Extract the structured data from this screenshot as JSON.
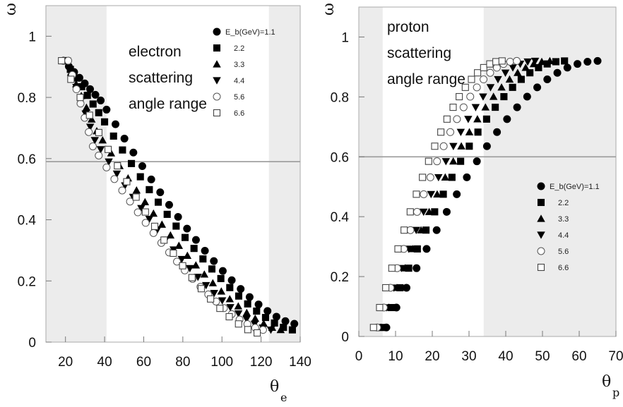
{
  "charts": [
    {
      "type": "scatter",
      "ylabel": "ω",
      "xlabel_main": "θ",
      "xlabel_sub": "e",
      "xlim": [
        10,
        140
      ],
      "ylim": [
        0,
        1.1
      ],
      "xticks": [
        "20",
        "40",
        "60",
        "80",
        "100",
        "120",
        "140"
      ],
      "yticks": [
        "0",
        "0.2",
        "0.4",
        "0.6",
        "0.8",
        "1"
      ],
      "annotation": [
        "electron",
        "scattering",
        "angle range"
      ],
      "legend_title": "E_b(GeV)=1.1",
      "legend_labels": [
        "2.2",
        "3.3",
        "4.4",
        "5.6",
        "6.6"
      ],
      "hline": 0.59,
      "shaded_x": [
        [
          10,
          41
        ],
        [
          124,
          140
        ]
      ],
      "series": [
        {
          "marker": "circle-filled",
          "x_start": 41,
          "x_end": 137,
          "y_start": 0.76,
          "y_end": 0.06,
          "upper_x_start": 19,
          "upper_y_start": 0.92
        },
        {
          "marker": "square-filled",
          "x_start": 40,
          "x_end": 136,
          "y_start": 0.72,
          "y_end": 0.04
        },
        {
          "marker": "triangle-up",
          "x_start": 39,
          "x_end": 130,
          "y_start": 0.66,
          "y_end": 0.04
        },
        {
          "marker": "triangle-down",
          "x_start": 38,
          "x_end": 125,
          "y_start": 0.63,
          "y_end": 0.04
        },
        {
          "marker": "circle-open",
          "x_start": 37,
          "x_end": 121,
          "y_start": 0.61,
          "y_end": 0.04
        },
        {
          "marker": "square-open",
          "x_start": 18,
          "x_end": 118,
          "y_start": 0.92,
          "y_end": 0.03
        }
      ]
    },
    {
      "type": "scatter",
      "ylabel": "ω",
      "xlabel_main": "θ",
      "xlabel_sub": "p",
      "xlim": [
        0,
        70
      ],
      "ylim": [
        0,
        1.1
      ],
      "xticks": [
        "0",
        "10",
        "20",
        "30",
        "40",
        "50",
        "60",
        "70"
      ],
      "yticks": [
        "0",
        "0.2",
        "0.4",
        "0.6",
        "0.8",
        "1"
      ],
      "annotation": [
        "proton",
        "scattering",
        "angle range"
      ],
      "legend_title": "E_b(GeV)=1.1",
      "legend_labels": [
        "2.2",
        "3.3",
        "4.4",
        "5.6",
        "6.6"
      ],
      "hline": 0.6,
      "shaded_x": [
        [
          0,
          6.5
        ],
        [
          34,
          70
        ]
      ],
      "series": [
        {
          "marker": "circle-filled",
          "x_start": 7.5,
          "x_end": 65,
          "y_start": 0.03,
          "y_end": 0.92
        },
        {
          "marker": "square-filled",
          "x_start": 6.5,
          "x_end": 56,
          "y_start": 0.03,
          "y_end": 0.92
        },
        {
          "marker": "triangle-up",
          "x_start": 6,
          "x_end": 52,
          "y_start": 0.03,
          "y_end": 0.92
        },
        {
          "marker": "triangle-down",
          "x_start": 5.5,
          "x_end": 48,
          "y_start": 0.03,
          "y_end": 0.92
        },
        {
          "marker": "circle-open",
          "x_start": 5,
          "x_end": 43,
          "y_start": 0.03,
          "y_end": 0.92
        },
        {
          "marker": "square-open",
          "x_start": 4,
          "x_end": 39,
          "y_start": 0.03,
          "y_end": 0.92
        }
      ]
    }
  ]
}
